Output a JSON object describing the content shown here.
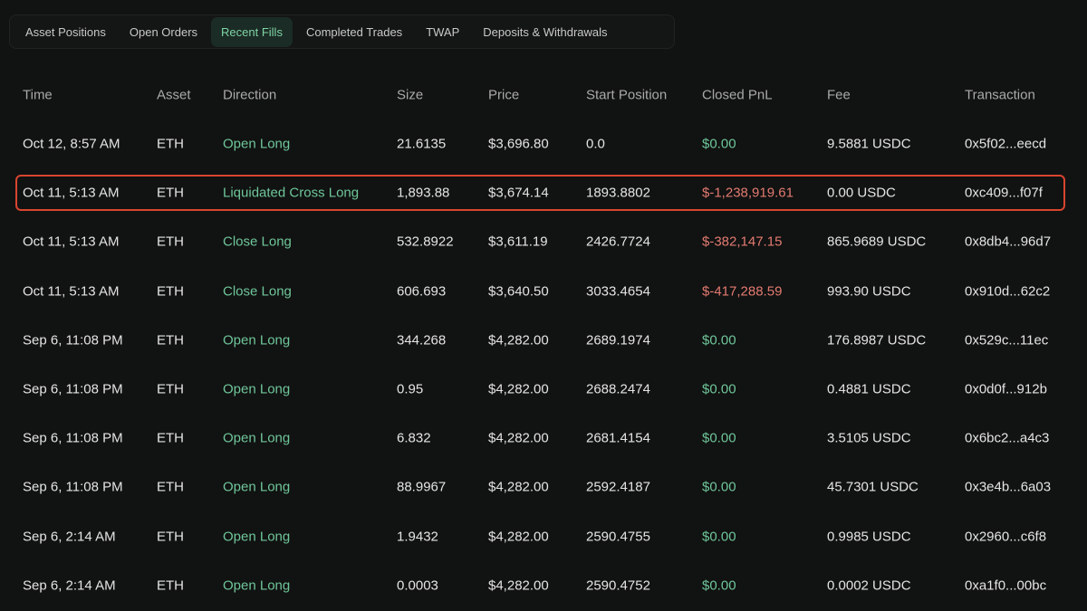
{
  "tabs": [
    "Asset Positions",
    "Open Orders",
    "Recent Fills",
    "Completed Trades",
    "TWAP",
    "Deposits & Withdrawals"
  ],
  "table": {
    "columns": [
      "Time",
      "Asset",
      "Direction",
      "Size",
      "Price",
      "Start Position",
      "Closed PnL",
      "Fee",
      "Transaction"
    ],
    "rows": [
      [
        "Oct 12, 8:57 AM",
        "ETH",
        "Open Long",
        "21.6135",
        "$3,696.80",
        "0.0",
        "$0.00",
        "9.5881 USDC",
        "0x5f02...eecd"
      ],
      [
        "Oct 11, 5:13 AM",
        "ETH",
        "Liquidated Cross Long",
        "1,893.88",
        "$3,674.14",
        "1893.8802",
        "$-1,238,919.61",
        "0.00 USDC",
        "0xc409...f07f"
      ],
      [
        "Oct 11, 5:13 AM",
        "ETH",
        "Close Long",
        "532.8922",
        "$3,611.19",
        "2426.7724",
        "$-382,147.15",
        "865.9689 USDC",
        "0x8db4...96d7"
      ],
      [
        "Oct 11, 5:13 AM",
        "ETH",
        "Close Long",
        "606.693",
        "$3,640.50",
        "3033.4654",
        "$-417,288.59",
        "993.90 USDC",
        "0x910d...62c2"
      ],
      [
        "Sep 6, 11:08 PM",
        "ETH",
        "Open Long",
        "344.268",
        "$4,282.00",
        "2689.1974",
        "$0.00",
        "176.8987 USDC",
        "0x529c...11ec"
      ],
      [
        "Sep 6, 11:08 PM",
        "ETH",
        "Open Long",
        "0.95",
        "$4,282.00",
        "2688.2474",
        "$0.00",
        "0.4881 USDC",
        "0x0d0f...912b"
      ],
      [
        "Sep 6, 11:08 PM",
        "ETH",
        "Open Long",
        "6.832",
        "$4,282.00",
        "2681.4154",
        "$0.00",
        "3.5105 USDC",
        "0x6bc2...a4c3"
      ],
      [
        "Sep 6, 11:08 PM",
        "ETH",
        "Open Long",
        "88.9967",
        "$4,282.00",
        "2592.4187",
        "$0.00",
        "45.7301 USDC",
        "0x3e4b...6a03"
      ],
      [
        "Sep 6, 2:14 AM",
        "ETH",
        "Open Long",
        "1.9432",
        "$4,282.00",
        "2590.4755",
        "$0.00",
        "0.9985 USDC",
        "0x2960...c6f8"
      ],
      [
        "Sep 6, 2:14 AM",
        "ETH",
        "Open Long",
        "0.0003",
        "$4,282.00",
        "2590.4752",
        "$0.00",
        "0.0002 USDC",
        "0xa1f0...00bc"
      ]
    ]
  }
}
